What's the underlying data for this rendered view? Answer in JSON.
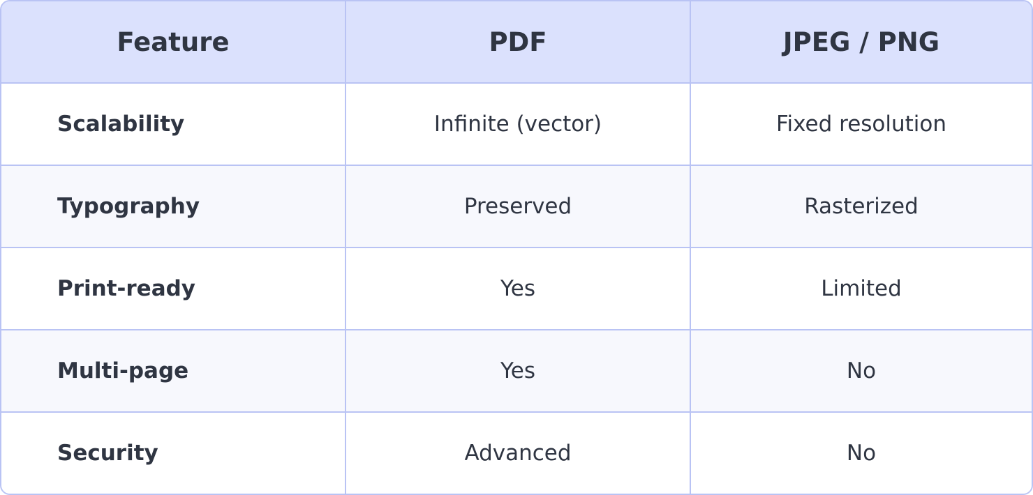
{
  "table": {
    "header": [
      "Feature",
      "PDF",
      "JPEG / PNG"
    ],
    "rows": [
      [
        "Scalability",
        "Infinite (vector)",
        "Fixed resolution"
      ],
      [
        "Typography",
        "Preserved",
        "Rasterized"
      ],
      [
        "Print-ready",
        "Yes",
        "Limited"
      ],
      [
        "Multi-page",
        "Yes",
        "No"
      ],
      [
        "Security",
        "Advanced",
        "No"
      ]
    ]
  }
}
